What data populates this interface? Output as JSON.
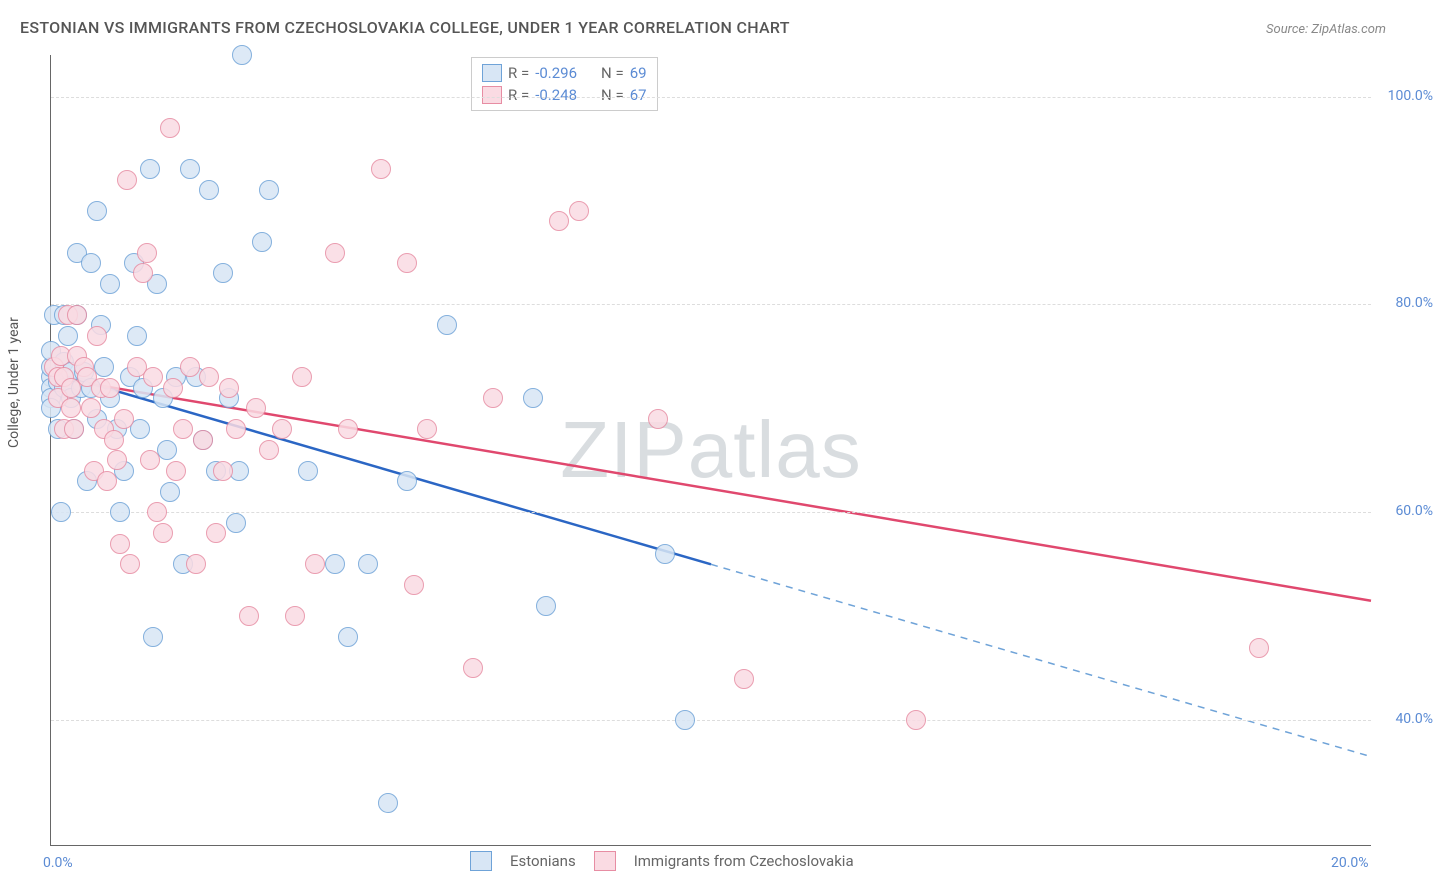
{
  "title": "ESTONIAN VS IMMIGRANTS FROM CZECHOSLOVAKIA COLLEGE, UNDER 1 YEAR CORRELATION CHART",
  "source": "Source: ZipAtlas.com",
  "watermark": "ZIPatlas",
  "ylabel": "College, Under 1 year",
  "chart": {
    "type": "scatter",
    "xlim": [
      0,
      20
    ],
    "ylim": [
      28,
      104
    ],
    "y_gridlines": [
      40,
      60,
      80,
      100
    ],
    "y_tick_labels": [
      "40.0%",
      "60.0%",
      "80.0%",
      "100.0%"
    ],
    "x_ticks": [
      0,
      20
    ],
    "x_tick_labels": [
      "0.0%",
      "20.0%"
    ],
    "background_color": "#ffffff",
    "grid_color": "#dddddd",
    "axis_color": "#666666",
    "tick_label_color": "#5b8bd4",
    "marker_radius": 10,
    "marker_border_width": 1.5,
    "trend_line_width": 2.5,
    "series": [
      {
        "name": "Estonians",
        "fill": "#d8e6f5",
        "stroke": "#6fa3d8",
        "trend": {
          "y_at_x0": 73.5,
          "y_at_x20": 36.5,
          "solid_until_x": 10,
          "solid_color": "#2b66c4",
          "dash_color": "#6fa3d8"
        },
        "R": "-0.296",
        "N": "69",
        "points": [
          [
            0.0,
            73
          ],
          [
            0.0,
            72
          ],
          [
            0.0,
            71
          ],
          [
            0.0,
            70
          ],
          [
            0.0,
            74
          ],
          [
            0.0,
            75.5
          ],
          [
            0.05,
            79
          ],
          [
            0.1,
            72.5
          ],
          [
            0.1,
            68
          ],
          [
            0.15,
            60
          ],
          [
            0.2,
            72
          ],
          [
            0.2,
            74.5
          ],
          [
            0.2,
            79
          ],
          [
            0.25,
            77
          ],
          [
            0.3,
            71
          ],
          [
            0.3,
            73.5
          ],
          [
            0.35,
            68
          ],
          [
            0.4,
            85
          ],
          [
            0.4,
            79
          ],
          [
            0.45,
            72
          ],
          [
            0.5,
            73.5
          ],
          [
            0.55,
            63
          ],
          [
            0.6,
            84
          ],
          [
            0.6,
            72
          ],
          [
            0.7,
            89
          ],
          [
            0.7,
            69
          ],
          [
            0.75,
            78
          ],
          [
            0.8,
            74
          ],
          [
            0.9,
            71
          ],
          [
            0.9,
            82
          ],
          [
            1.0,
            68
          ],
          [
            1.05,
            60
          ],
          [
            1.1,
            64
          ],
          [
            1.2,
            73
          ],
          [
            1.25,
            84
          ],
          [
            1.3,
            77
          ],
          [
            1.35,
            68
          ],
          [
            1.4,
            72
          ],
          [
            1.5,
            93
          ],
          [
            1.55,
            48
          ],
          [
            1.6,
            82
          ],
          [
            1.7,
            71
          ],
          [
            1.75,
            66
          ],
          [
            1.8,
            62
          ],
          [
            1.9,
            73
          ],
          [
            2.0,
            55
          ],
          [
            2.1,
            93
          ],
          [
            2.2,
            73
          ],
          [
            2.3,
            67
          ],
          [
            2.4,
            91
          ],
          [
            2.5,
            64
          ],
          [
            2.6,
            83
          ],
          [
            2.7,
            71
          ],
          [
            2.8,
            59
          ],
          [
            2.85,
            64
          ],
          [
            2.9,
            104
          ],
          [
            3.2,
            86
          ],
          [
            3.3,
            91
          ],
          [
            3.9,
            64
          ],
          [
            4.3,
            55
          ],
          [
            4.5,
            48
          ],
          [
            4.8,
            55
          ],
          [
            5.1,
            32
          ],
          [
            5.4,
            63
          ],
          [
            6.0,
            78
          ],
          [
            7.3,
            71
          ],
          [
            7.5,
            51
          ],
          [
            9.3,
            56
          ],
          [
            9.6,
            40
          ]
        ]
      },
      {
        "name": "Immigrants from Czechoslovakia",
        "fill": "#fadbe3",
        "stroke": "#e78da3",
        "trend": {
          "y_at_x0": 73.0,
          "y_at_x20": 51.5,
          "solid_until_x": 20,
          "solid_color": "#e0486e",
          "dash_color": "#e0486e"
        },
        "R": "-0.248",
        "N": "67",
        "points": [
          [
            0.05,
            74
          ],
          [
            0.1,
            73
          ],
          [
            0.1,
            71
          ],
          [
            0.15,
            75
          ],
          [
            0.2,
            73
          ],
          [
            0.2,
            68
          ],
          [
            0.25,
            79
          ],
          [
            0.3,
            72
          ],
          [
            0.3,
            70
          ],
          [
            0.35,
            68
          ],
          [
            0.4,
            75
          ],
          [
            0.4,
            79
          ],
          [
            0.5,
            74
          ],
          [
            0.55,
            73
          ],
          [
            0.6,
            70
          ],
          [
            0.65,
            64
          ],
          [
            0.7,
            77
          ],
          [
            0.75,
            72
          ],
          [
            0.8,
            68
          ],
          [
            0.85,
            63
          ],
          [
            0.9,
            72
          ],
          [
            0.95,
            67
          ],
          [
            1.0,
            65
          ],
          [
            1.05,
            57
          ],
          [
            1.1,
            69
          ],
          [
            1.15,
            92
          ],
          [
            1.2,
            55
          ],
          [
            1.3,
            74
          ],
          [
            1.4,
            83
          ],
          [
            1.45,
            85
          ],
          [
            1.5,
            65
          ],
          [
            1.55,
            73
          ],
          [
            1.6,
            60
          ],
          [
            1.7,
            58
          ],
          [
            1.8,
            97
          ],
          [
            1.85,
            72
          ],
          [
            1.9,
            64
          ],
          [
            2.0,
            68
          ],
          [
            2.1,
            74
          ],
          [
            2.2,
            55
          ],
          [
            2.3,
            67
          ],
          [
            2.4,
            73
          ],
          [
            2.5,
            58
          ],
          [
            2.6,
            64
          ],
          [
            2.7,
            72
          ],
          [
            2.8,
            68
          ],
          [
            3.0,
            50
          ],
          [
            3.1,
            70
          ],
          [
            3.3,
            66
          ],
          [
            3.5,
            68
          ],
          [
            3.7,
            50
          ],
          [
            3.8,
            73
          ],
          [
            4.0,
            55
          ],
          [
            4.3,
            85
          ],
          [
            4.5,
            68
          ],
          [
            5.0,
            93
          ],
          [
            5.4,
            84
          ],
          [
            5.5,
            53
          ],
          [
            5.7,
            68
          ],
          [
            6.4,
            45
          ],
          [
            6.7,
            71
          ],
          [
            7.7,
            88
          ],
          [
            8.0,
            89
          ],
          [
            9.2,
            69
          ],
          [
            10.5,
            44
          ],
          [
            13.1,
            40
          ],
          [
            18.3,
            47
          ]
        ]
      }
    ]
  },
  "legend_top_rows": [
    {
      "swatch": 0,
      "Rlabel": "R = ",
      "R": "-0.296",
      "Nlabel": "N = ",
      "N": "69"
    },
    {
      "swatch": 1,
      "Rlabel": "R = ",
      "R": "-0.248",
      "Nlabel": "N = ",
      "N": "67"
    }
  ],
  "legend_bottom": [
    {
      "swatch": 0,
      "label": "Estonians"
    },
    {
      "swatch": 1,
      "label": "Immigrants from Czechoslovakia"
    }
  ]
}
